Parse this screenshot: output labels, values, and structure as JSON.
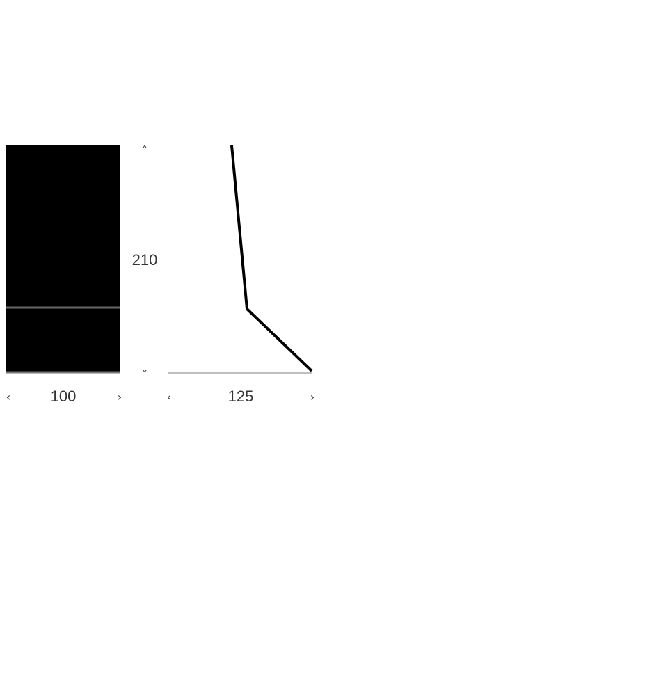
{
  "dimensions": {
    "height": "210",
    "width": "100",
    "depth": "125"
  },
  "arrows": {
    "up": "ˆ",
    "down": "ˇ",
    "left": "‹",
    "right": "›"
  },
  "colors": {
    "front_fill": "#000000",
    "divider": "#666666",
    "baseline": "#aaaaaa"
  }
}
